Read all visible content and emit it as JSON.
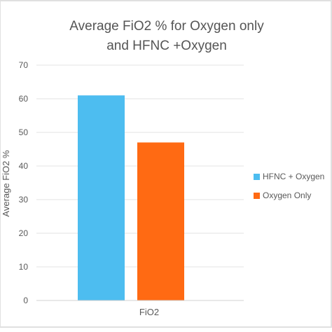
{
  "chart_data": {
    "type": "bar",
    "title_lines": [
      "Average FiO2 % for Oxygen only",
      "and HFNC  +Oxygen"
    ],
    "categories": [
      "FiO2"
    ],
    "series": [
      {
        "name": "HFNC + Oxygen",
        "values": [
          61
        ],
        "color": "#4dbdf0"
      },
      {
        "name": "Oxygen Only",
        "values": [
          47
        ],
        "color": "#ff6a13"
      }
    ],
    "xlabel": "",
    "ylabel": "Average FiO2 %",
    "ylim": [
      0,
      70
    ],
    "yticks": [
      "0",
      "10",
      "20",
      "30",
      "40",
      "50",
      "60",
      "70"
    ],
    "grid": true,
    "legend": "right"
  }
}
